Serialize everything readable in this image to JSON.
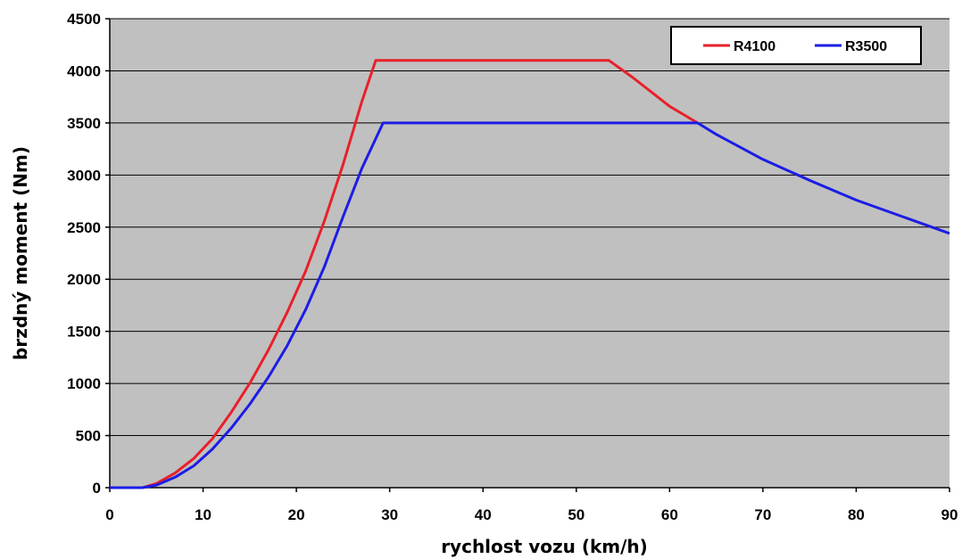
{
  "chart_data": {
    "type": "line",
    "xlabel": "rychlost vozu (km/h)",
    "ylabel": "brzdný moment (Nm)",
    "xlim": [
      0,
      90
    ],
    "ylim": [
      0,
      4500
    ],
    "xticks": [
      "0",
      "10",
      "20",
      "30",
      "40",
      "50",
      "60",
      "70",
      "80",
      "90"
    ],
    "yticks": [
      "0",
      "500",
      "1000",
      "1500",
      "2000",
      "2500",
      "3000",
      "3500",
      "4000",
      "4500"
    ],
    "grid": "horizontal",
    "legend_position": "top-right",
    "background": "#c0c0c0",
    "series": [
      {
        "name": "R4100",
        "color": "#e8202a",
        "x": [
          0,
          3.5,
          5,
          7,
          9,
          11,
          13,
          15,
          17,
          19,
          21,
          23,
          25,
          27,
          28.5,
          50,
          53.5,
          56,
          58,
          60,
          61.5,
          63
        ],
        "y": [
          0,
          0,
          40,
          140,
          280,
          470,
          720,
          1000,
          1320,
          1680,
          2080,
          2560,
          3100,
          3700,
          4100,
          4100,
          4100,
          3940,
          3800,
          3660,
          3580,
          3500
        ]
      },
      {
        "name": "R3500",
        "color": "#1c1ce6",
        "x": [
          0,
          3.5,
          5,
          7,
          9,
          11,
          13,
          15,
          17,
          19,
          21,
          23,
          25,
          27,
          29.3,
          50,
          63,
          65,
          70,
          75,
          80,
          85,
          90
        ],
        "y": [
          0,
          0,
          25,
          100,
          210,
          370,
          570,
          800,
          1060,
          1360,
          1710,
          2120,
          2600,
          3060,
          3500,
          3500,
          3500,
          3390,
          3150,
          2950,
          2760,
          2600,
          2440
        ]
      }
    ]
  }
}
